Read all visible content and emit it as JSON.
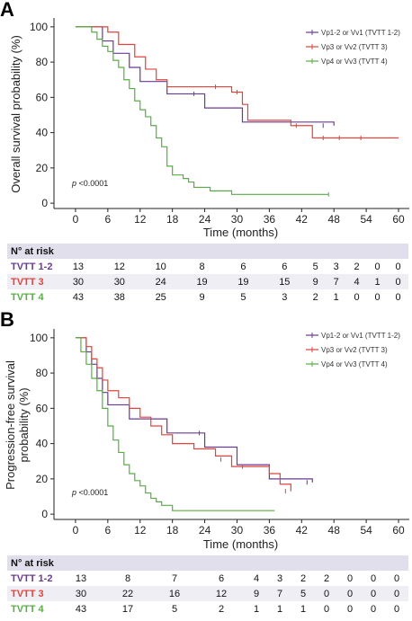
{
  "chart_data": [
    {
      "panel": "A",
      "type": "line",
      "ylabel": "Overall survival probability (%)",
      "xlabel": "Time (months)",
      "xticks": [
        0,
        6,
        12,
        18,
        24,
        30,
        36,
        42,
        48,
        54,
        60
      ],
      "yticks": [
        0,
        20,
        40,
        60,
        80,
        100
      ],
      "xlim": [
        -4,
        62
      ],
      "ylim": [
        -3,
        104
      ],
      "p_value": "p <0.0001",
      "legend_position": "top-right",
      "series": [
        {
          "name": "Vp1-2 or Vv1 (TVTT 1-2)",
          "color": "#6b3a94",
          "steps": [
            [
              0,
              100
            ],
            [
              5,
              92
            ],
            [
              7,
              85
            ],
            [
              10,
              77
            ],
            [
              12,
              69
            ],
            [
              17,
              62
            ],
            [
              24,
              54
            ],
            [
              31,
              46
            ],
            [
              48,
              44
            ]
          ],
          "censored": [
            [
              22,
              62
            ],
            [
              46,
              44
            ]
          ]
        },
        {
          "name": "Vp3 or Vv2 (TVTT 3)",
          "color": "#e0443a",
          "steps": [
            [
              0,
              100
            ],
            [
              6,
              97
            ],
            [
              8,
              90
            ],
            [
              11,
              83
            ],
            [
              13,
              76
            ],
            [
              15,
              70
            ],
            [
              17,
              66
            ],
            [
              29,
              63
            ],
            [
              31,
              56
            ],
            [
              32,
              47
            ],
            [
              40,
              44
            ],
            [
              44,
              37
            ],
            [
              60,
              37
            ]
          ],
          "censored": [
            [
              26,
              66
            ],
            [
              30,
              63
            ],
            [
              41,
              44
            ],
            [
              46,
              37
            ],
            [
              49,
              37
            ],
            [
              53,
              37
            ]
          ]
        },
        {
          "name": "Vp4 or Vv3 (TVTT 4)",
          "color": "#58ad44",
          "steps": [
            [
              0,
              100
            ],
            [
              3,
              97
            ],
            [
              4,
              93
            ],
            [
              5,
              89
            ],
            [
              6,
              86
            ],
            [
              7,
              81
            ],
            [
              8,
              77
            ],
            [
              9,
              70
            ],
            [
              10,
              65
            ],
            [
              11,
              58
            ],
            [
              12,
              53
            ],
            [
              13,
              49
            ],
            [
              14,
              44
            ],
            [
              15,
              37
            ],
            [
              16,
              32
            ],
            [
              17,
              21
            ],
            [
              18,
              16
            ],
            [
              20,
              14
            ],
            [
              21,
              12
            ],
            [
              22,
              9
            ],
            [
              25,
              7
            ],
            [
              29,
              5
            ],
            [
              47,
              5
            ]
          ],
          "censored": [
            [
              47,
              5
            ]
          ]
        }
      ],
      "risk_table": {
        "header": "N° at risk",
        "rows": [
          {
            "label": "TVTT 1-2",
            "color": "#6b3a94",
            "values": [
              "13",
              "12",
              "10",
              "8",
              "6",
              "6",
              "5",
              "3",
              "2",
              "0",
              "0"
            ]
          },
          {
            "label": "TVTT 3",
            "color": "#e0443a",
            "values": [
              "30",
              "30",
              "24",
              "19",
              "19",
              "15",
              "9",
              "7",
              "4",
              "1",
              "0"
            ]
          },
          {
            "label": "TVTT 4",
            "color": "#58ad44",
            "values": [
              "43",
              "38",
              "25",
              "9",
              "5",
              "3",
              "2",
              "1",
              "0",
              "0",
              "0"
            ]
          }
        ]
      }
    },
    {
      "panel": "B",
      "type": "line",
      "ylabel": "Progression-free survival probability (%)",
      "xlabel": "Time (months)",
      "xticks": [
        0,
        6,
        12,
        18,
        24,
        30,
        36,
        42,
        48,
        54,
        60
      ],
      "yticks": [
        0,
        20,
        40,
        60,
        80,
        100
      ],
      "xlim": [
        -4,
        62
      ],
      "ylim": [
        -3,
        104
      ],
      "p_value": "p <0.0001",
      "legend_position": "top-right",
      "series": [
        {
          "name": "Vp1-2 or Vv1 (TVTT 1-2)",
          "color": "#6b3a94",
          "steps": [
            [
              0,
              100
            ],
            [
              2,
              92
            ],
            [
              3,
              85
            ],
            [
              4,
              77
            ],
            [
              5,
              69
            ],
            [
              6,
              62
            ],
            [
              10,
              54
            ],
            [
              17,
              46
            ],
            [
              24,
              38
            ],
            [
              30,
              28
            ],
            [
              36,
              20
            ],
            [
              44,
              18
            ]
          ],
          "censored": [
            [
              23,
              46
            ],
            [
              43,
              18
            ]
          ]
        },
        {
          "name": "Vp3 or Vv2 (TVTT 3)",
          "color": "#e0443a",
          "steps": [
            [
              0,
              100
            ],
            [
              2,
              95
            ],
            [
              3,
              88
            ],
            [
              4,
              83
            ],
            [
              5,
              76
            ],
            [
              6,
              70
            ],
            [
              8,
              66
            ],
            [
              10,
              60
            ],
            [
              12,
              55
            ],
            [
              14,
              50
            ],
            [
              16,
              45
            ],
            [
              18,
              40
            ],
            [
              22,
              37
            ],
            [
              26,
              33
            ],
            [
              29,
              27
            ],
            [
              36,
              23
            ],
            [
              38,
              17
            ],
            [
              40,
              13
            ]
          ],
          "censored": [
            [
              27,
              31
            ],
            [
              31,
              27
            ],
            [
              39,
              13
            ]
          ]
        },
        {
          "name": "Vp4 or Vv3 (TVTT 4)",
          "color": "#58ad44",
          "steps": [
            [
              0,
              100
            ],
            [
              1,
              92
            ],
            [
              2,
              85
            ],
            [
              3,
              77
            ],
            [
              4,
              70
            ],
            [
              5,
              60
            ],
            [
              6,
              50
            ],
            [
              7,
              42
            ],
            [
              8,
              35
            ],
            [
              9,
              28
            ],
            [
              10,
              23
            ],
            [
              11,
              19
            ],
            [
              12,
              16
            ],
            [
              13,
              12
            ],
            [
              14,
              9
            ],
            [
              15,
              7
            ],
            [
              16,
              5
            ],
            [
              18,
              2
            ],
            [
              37,
              2
            ]
          ],
          "censored": []
        }
      ],
      "risk_table": {
        "header": "N° at risk",
        "rows": [
          {
            "label": "TVTT 1-2",
            "color": "#6b3a94",
            "values": [
              "13",
              "8",
              "7",
              "6",
              "4",
              "3",
              "2",
              "2",
              "0",
              "0",
              "0"
            ]
          },
          {
            "label": "TVTT 3",
            "color": "#e0443a",
            "values": [
              "30",
              "22",
              "16",
              "12",
              "9",
              "7",
              "5",
              "0",
              "0",
              "0",
              "0"
            ]
          },
          {
            "label": "TVTT 4",
            "color": "#58ad44",
            "values": [
              "43",
              "17",
              "5",
              "2",
              "1",
              "1",
              "1",
              "0",
              "0",
              "0",
              "0"
            ]
          }
        ]
      }
    }
  ]
}
